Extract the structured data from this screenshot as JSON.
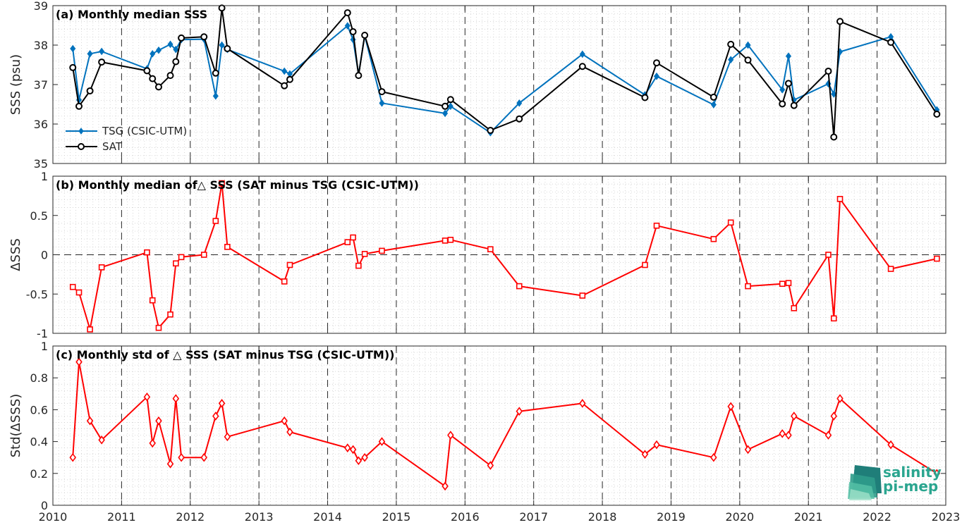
{
  "colors": {
    "tsg": "#0072BD",
    "sat": "#000000",
    "delta": "#ff0000",
    "axis": "#262626",
    "logo": "#2aa58f"
  },
  "x_ticks": [
    "2010",
    "2011",
    "2012",
    "2013",
    "2014",
    "2015",
    "2016",
    "2017",
    "2018",
    "2019",
    "2020",
    "2021",
    "2022",
    "2023"
  ],
  "logo": {
    "line1": "salinity",
    "line2": "pi-mep"
  },
  "chart_data": [
    {
      "type": "line",
      "title": "(a) Monthly median SSS",
      "ylabel": "SSS (psu)",
      "ylim": [
        35,
        39
      ],
      "xlim": [
        2010,
        2023
      ],
      "y_ticks": [
        "35",
        "36",
        "37",
        "38",
        "39"
      ],
      "grid": true,
      "legend": "bottom-left",
      "series": [
        {
          "name": "TSG (CSIC-UTM)",
          "marker": "diamond",
          "x": [
            2010.29,
            2010.38,
            2010.54,
            2010.71,
            2011.37,
            2011.45,
            2011.54,
            2011.71,
            2011.79,
            2011.87,
            2012.2,
            2012.37,
            2012.46,
            2012.54,
            2013.37,
            2013.45,
            2014.29,
            2014.37,
            2014.45,
            2014.54,
            2014.79,
            2015.71,
            2015.79,
            2016.37,
            2016.79,
            2017.71,
            2018.62,
            2018.79,
            2019.62,
            2019.87,
            2020.12,
            2020.62,
            2020.71,
            2020.79,
            2021.29,
            2021.37,
            2021.46,
            2022.2,
            2022.87
          ],
          "y": [
            37.91,
            36.61,
            37.78,
            37.84,
            37.4,
            37.78,
            37.87,
            38.02,
            37.89,
            38.14,
            38.15,
            36.71,
            38.0,
            37.89,
            37.34,
            37.27,
            38.49,
            38.14,
            37.26,
            38.24,
            36.53,
            36.27,
            36.45,
            35.78,
            36.53,
            37.77,
            36.74,
            37.21,
            36.49,
            37.63,
            38.0,
            36.87,
            37.72,
            36.61,
            37.02,
            36.76,
            37.83,
            38.21,
            36.36
          ]
        },
        {
          "name": "SAT",
          "marker": "circle",
          "x": [
            2010.29,
            2010.38,
            2010.54,
            2010.71,
            2011.37,
            2011.45,
            2011.54,
            2011.71,
            2011.79,
            2011.87,
            2012.2,
            2012.37,
            2012.46,
            2012.54,
            2013.37,
            2013.45,
            2014.29,
            2014.37,
            2014.45,
            2014.54,
            2014.79,
            2015.71,
            2015.79,
            2016.37,
            2016.79,
            2017.71,
            2018.62,
            2018.79,
            2019.62,
            2019.87,
            2020.12,
            2020.62,
            2020.71,
            2020.79,
            2021.29,
            2021.37,
            2021.46,
            2022.2,
            2022.87
          ],
          "y": [
            37.43,
            36.45,
            36.84,
            37.57,
            37.35,
            37.15,
            36.94,
            37.23,
            37.58,
            38.18,
            38.21,
            37.29,
            38.94,
            37.91,
            36.97,
            37.13,
            38.82,
            38.34,
            37.23,
            38.25,
            36.82,
            36.45,
            36.62,
            35.84,
            36.13,
            37.46,
            36.67,
            37.55,
            36.68,
            38.02,
            37.62,
            36.51,
            37.03,
            36.47,
            37.34,
            35.67,
            38.6,
            38.07,
            36.25
          ]
        }
      ]
    },
    {
      "type": "line",
      "title": "(b) Monthly median of△ SSS (SAT minus TSG (CSIC-UTM))",
      "ylabel": "ΔSSS",
      "ylim": [
        -1,
        1
      ],
      "xlim": [
        2010,
        2023
      ],
      "y_ticks": [
        "-1",
        "-0.5",
        "0",
        "0.5",
        "1"
      ],
      "grid": true,
      "series": [
        {
          "name": "",
          "marker": "square",
          "x": [
            2010.29,
            2010.38,
            2010.54,
            2010.71,
            2011.37,
            2011.45,
            2011.54,
            2011.71,
            2011.79,
            2011.87,
            2012.2,
            2012.37,
            2012.46,
            2012.54,
            2013.37,
            2013.45,
            2014.29,
            2014.37,
            2014.45,
            2014.54,
            2014.79,
            2015.71,
            2015.79,
            2016.37,
            2016.79,
            2017.71,
            2018.62,
            2018.79,
            2019.62,
            2019.87,
            2020.12,
            2020.62,
            2020.71,
            2020.79,
            2021.29,
            2021.37,
            2021.46,
            2022.2,
            2022.87
          ],
          "y": [
            -0.41,
            -0.48,
            -0.95,
            -0.16,
            0.03,
            -0.58,
            -0.93,
            -0.76,
            -0.11,
            -0.03,
            0.0,
            0.43,
            0.91,
            0.1,
            -0.34,
            -0.13,
            0.16,
            0.22,
            -0.14,
            0.01,
            0.05,
            0.18,
            0.19,
            0.07,
            -0.4,
            -0.52,
            -0.13,
            0.37,
            0.2,
            0.41,
            -0.4,
            -0.37,
            -0.36,
            -0.68,
            0.0,
            -0.81,
            0.71,
            -0.18,
            -0.05
          ]
        }
      ]
    },
    {
      "type": "line",
      "title": "(c) Monthly std of △ SSS (SAT minus TSG (CSIC-UTM))",
      "ylabel": "Std(ΔSSS)",
      "ylim": [
        0,
        1
      ],
      "xlim": [
        2010,
        2023
      ],
      "y_ticks": [
        "0",
        "0.2",
        "0.4",
        "0.6",
        "0.8",
        "1"
      ],
      "grid": true,
      "series": [
        {
          "name": "",
          "marker": "diamond",
          "x": [
            2010.29,
            2010.38,
            2010.54,
            2010.71,
            2011.37,
            2011.45,
            2011.54,
            2011.71,
            2011.79,
            2011.87,
            2012.2,
            2012.37,
            2012.46,
            2012.54,
            2013.37,
            2013.45,
            2014.29,
            2014.37,
            2014.45,
            2014.54,
            2014.79,
            2015.71,
            2015.79,
            2016.37,
            2016.79,
            2017.71,
            2018.62,
            2018.79,
            2019.62,
            2019.87,
            2020.12,
            2020.62,
            2020.71,
            2020.79,
            2021.29,
            2021.37,
            2021.46,
            2022.2,
            2022.87
          ],
          "y": [
            0.3,
            0.9,
            0.53,
            0.41,
            0.68,
            0.39,
            0.53,
            0.26,
            0.67,
            0.3,
            0.3,
            0.56,
            0.64,
            0.43,
            0.53,
            0.46,
            0.36,
            0.35,
            0.28,
            0.3,
            0.4,
            0.12,
            0.44,
            0.25,
            0.59,
            0.64,
            0.32,
            0.38,
            0.3,
            0.62,
            0.35,
            0.45,
            0.44,
            0.56,
            0.44,
            0.56,
            0.67,
            0.38,
            0.2
          ]
        }
      ]
    }
  ]
}
